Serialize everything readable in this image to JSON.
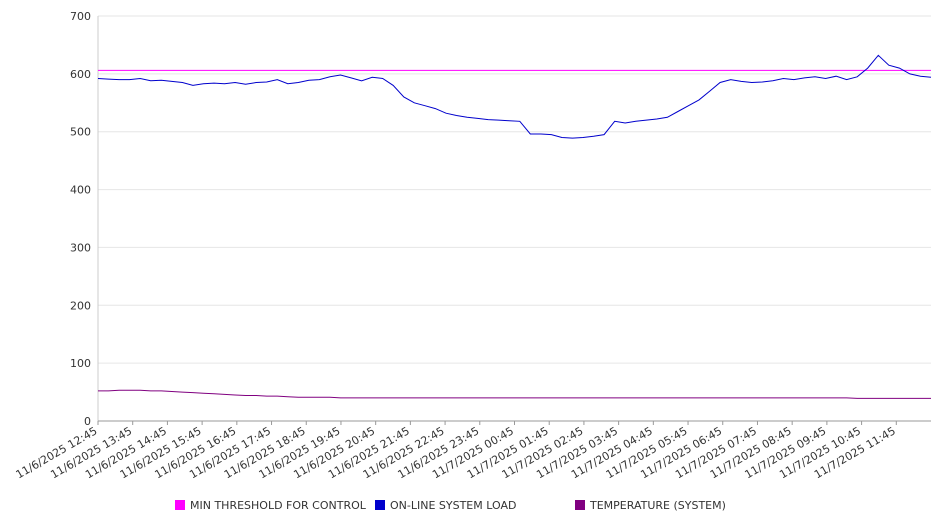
{
  "chart_data": {
    "type": "line",
    "title": "",
    "xlabel": "",
    "ylabel": "",
    "ylim": [
      0,
      700
    ],
    "y_ticks": [
      0,
      100,
      200,
      300,
      400,
      500,
      600,
      700
    ],
    "y_tick_labels": [
      "0",
      "100",
      "200",
      "300",
      "400",
      "500",
      "600",
      "700"
    ],
    "x_tick_labels": [
      "11/6/2025 12:45",
      "11/6/2025 13:45",
      "11/6/2025 14:45",
      "11/6/2025 15:45",
      "11/6/2025 16:45",
      "11/6/2025 17:45",
      "11/6/2025 18:45",
      "11/6/2025 19:45",
      "11/6/2025 20:45",
      "11/6/2025 21:45",
      "11/6/2025 22:45",
      "11/6/2025 23:45",
      "11/7/2025 00:45",
      "11/7/2025 01:45",
      "11/7/2025 02:45",
      "11/7/2025 03:45",
      "11/7/2025 04:45",
      "11/7/2025 05:45",
      "11/7/2025 06:45",
      "11/7/2025 07:45",
      "11/7/2025 08:45",
      "11/7/2025 09:45",
      "11/7/2025 10:45",
      "11/7/2025 11:45"
    ],
    "grid": true,
    "legend_position": "bottom",
    "series": [
      {
        "name": "MIN THRESHOLD FOR CONTROL",
        "color": "#ff00ff",
        "values": [
          606,
          606
        ]
      },
      {
        "name": "ON-LINE SYSTEM LOAD",
        "color": "#0000cc",
        "values": [
          592,
          591,
          590,
          590,
          592,
          588,
          589,
          587,
          585,
          580,
          583,
          584,
          583,
          585,
          582,
          585,
          586,
          590,
          583,
          585,
          589,
          590,
          595,
          598,
          593,
          588,
          594,
          592,
          580,
          560,
          550,
          545,
          540,
          532,
          528,
          525,
          523,
          521,
          520,
          519,
          518,
          496,
          496,
          495,
          490,
          489,
          490,
          492,
          495,
          518,
          515,
          518,
          520,
          522,
          525,
          535,
          545,
          555,
          570,
          585,
          590,
          587,
          585,
          586,
          588,
          592,
          590,
          593,
          595,
          592,
          596,
          590,
          595,
          610,
          632,
          615,
          610,
          600,
          596,
          594
        ]
      },
      {
        "name": "TEMPERATURE (SYSTEM)",
        "color": "#800080",
        "values": [
          52,
          52,
          53,
          53,
          53,
          52,
          52,
          51,
          50,
          49,
          48,
          47,
          46,
          45,
          44,
          44,
          43,
          43,
          42,
          41,
          41,
          41,
          41,
          40,
          40,
          40,
          40,
          40,
          40,
          40,
          40,
          40,
          40,
          40,
          40,
          40,
          40,
          40,
          40,
          40,
          40,
          40,
          40,
          40,
          40,
          40,
          40,
          40,
          40,
          40,
          40,
          40,
          40,
          40,
          40,
          40,
          40,
          40,
          40,
          40,
          40,
          40,
          40,
          40,
          40,
          40,
          40,
          40,
          40,
          40,
          40,
          40,
          39,
          39,
          39,
          39,
          39,
          39,
          39,
          39
        ]
      }
    ]
  }
}
